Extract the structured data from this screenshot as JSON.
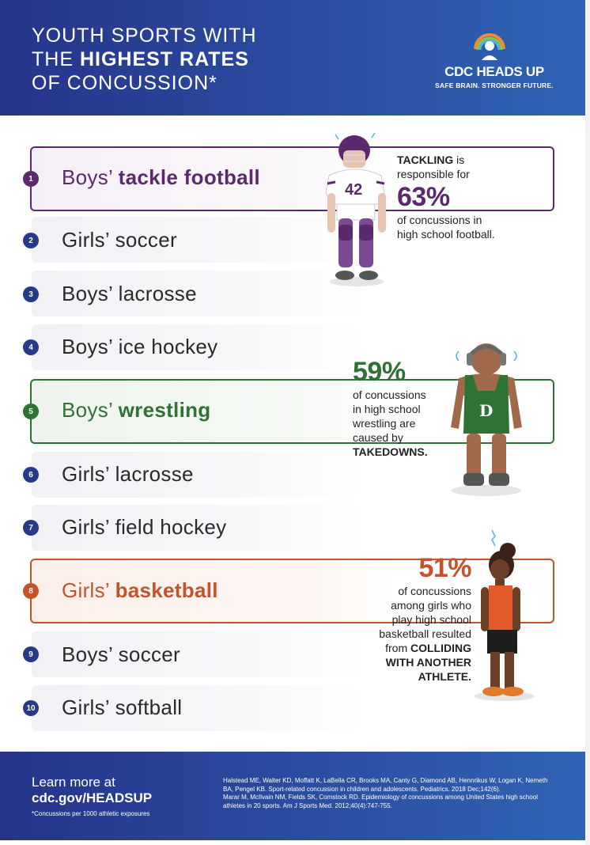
{
  "header": {
    "title_line1": "YOUTH SPORTS WITH",
    "title_line2_pre": "THE ",
    "title_line2_bold": "HIGHEST RATES",
    "title_line3": "OF CONCUSSION*"
  },
  "logo": {
    "name": "CDC HEADS UP",
    "tagline": "SAFE BRAIN. STRONGER FUTURE."
  },
  "rankings": [
    {
      "rank": "1",
      "prefix": "Boys’ ",
      "sport": "tackle football"
    },
    {
      "rank": "2",
      "text": "Girls’ soccer"
    },
    {
      "rank": "3",
      "text": "Boys’ lacrosse"
    },
    {
      "rank": "4",
      "text": "Boys’ ice hockey"
    },
    {
      "rank": "5",
      "prefix": "Boys’ ",
      "sport": "wrestling"
    },
    {
      "rank": "6",
      "text": "Girls’ lacrosse"
    },
    {
      "rank": "7",
      "text": "Girls’ field hockey"
    },
    {
      "rank": "8",
      "prefix": "Girls’ ",
      "sport": "basketball"
    },
    {
      "rank": "9",
      "text": "Boys’ soccer"
    },
    {
      "rank": "10",
      "text": "Girls’ softball"
    }
  ],
  "stats": {
    "football": {
      "lead_bold": "TACKLING",
      "lead_rest": " is",
      "line2": "responsible for",
      "percent": "63%",
      "line3": "of concussions in",
      "line4": "high school football.",
      "jersey": "42"
    },
    "wrestling": {
      "percent": "59%",
      "line1": "of concussions",
      "line2": "in high school",
      "line3": "wrestling are",
      "line4": "caused by",
      "line5_bold": "TAKEDOWNS.",
      "jersey": "D"
    },
    "basketball": {
      "percent": "51%",
      "line1": "of concussions",
      "line2": "among girls who",
      "line3": "play high school",
      "line4": "basketball resulted",
      "line5_pre": "from ",
      "line5_bold": "COLLIDING",
      "line6_bold": "WITH ANOTHER",
      "line7_bold": "ATHLETE."
    }
  },
  "colors": {
    "navy": "#263b87",
    "football_purple": "#5b2a6e",
    "wrestling_green": "#2e7235",
    "basketball_orange": "#c4532a"
  },
  "footer": {
    "learn": "Learn more at",
    "url": "cdc.gov/HEADSUP",
    "note": "*Concussions per 1000 athletic exposures",
    "ref1": "Halstead ME, Walter KD, Moffatt K, LaBella CR, Brooks MA, Canty G, Diamond AB, Hennrikus W, Logan K, Nemeth BA, Pengel KB. Sport-related concussion in children and adolescents. Pediatrics. 2018 Dec;142(6).",
    "ref2": "Marar M, McIlvain NM, Fields SK, Comstock RD. Epidemiology of concussions among United States high school athletes in 20 sports. Am J Sports Med. 2012;40(4):747-755."
  }
}
